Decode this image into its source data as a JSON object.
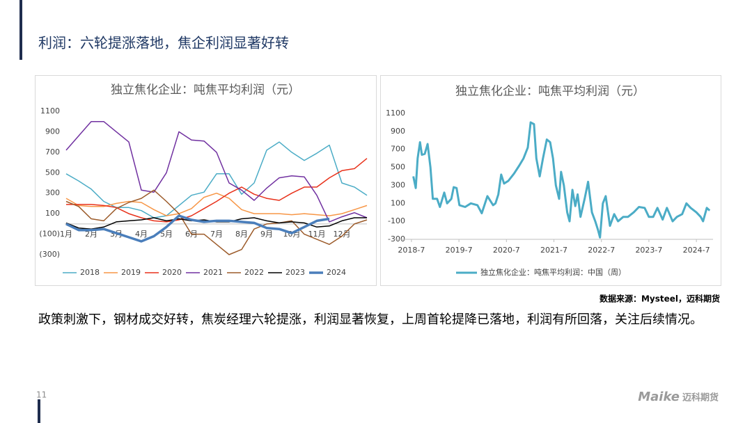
{
  "header": {
    "title": "利润：六轮提涨落地，焦企利润显著好转"
  },
  "chart_data": [
    {
      "type": "line",
      "title": "独立焦化企业：吨焦平均利润（元）",
      "categories": [
        "1月",
        null,
        "2月",
        null,
        "3月",
        null,
        "4月",
        null,
        "5月",
        null,
        "6月",
        null,
        "7月",
        null,
        "8月",
        null,
        "9月",
        null,
        "10月",
        null,
        "11月",
        null,
        "12月",
        null,
        null
      ],
      "ylim": [
        -300,
        1100
      ],
      "yticks": [
        1100,
        900,
        700,
        500,
        300,
        100,
        {
          "value": -100,
          "label": "(100)"
        },
        {
          "value": -300,
          "label": "(300)"
        }
      ],
      "negative_tick_label_color": "#c00000",
      "legend": "bottom",
      "series": [
        {
          "name": "2018",
          "color": "#4bacc6",
          "width": 1.5,
          "values": [
            490,
            420,
            340,
            220,
            160,
            160,
            130,
            60,
            80,
            180,
            280,
            310,
            490,
            490,
            290,
            400,
            720,
            800,
            700,
            620,
            690,
            770,
            400,
            360,
            280
          ]
        },
        {
          "name": "2019",
          "color": "#f79646",
          "width": 1.5,
          "values": [
            250,
            180,
            170,
            170,
            200,
            220,
            210,
            140,
            80,
            100,
            150,
            260,
            300,
            250,
            140,
            100,
            100,
            100,
            90,
            100,
            90,
            80,
            100,
            140,
            180
          ]
        },
        {
          "name": "2020",
          "color": "#e8311a",
          "width": 1.5,
          "values": [
            190,
            190,
            190,
            180,
            160,
            100,
            60,
            30,
            20,
            40,
            80,
            150,
            220,
            300,
            360,
            290,
            250,
            230,
            300,
            360,
            360,
            450,
            520,
            540,
            640
          ]
        },
        {
          "name": "2021",
          "color": "#7030a0",
          "width": 1.5,
          "values": [
            720,
            860,
            1000,
            1000,
            900,
            800,
            330,
            310,
            500,
            900,
            820,
            810,
            700,
            400,
            330,
            230,
            350,
            450,
            470,
            460,
            280,
            20,
            70,
            110,
            60
          ]
        },
        {
          "name": "2022",
          "color": "#9c5b2a",
          "width": 1.5,
          "values": [
            220,
            170,
            50,
            30,
            150,
            210,
            250,
            330,
            220,
            100,
            -100,
            -100,
            -200,
            -300,
            -250,
            -50,
            0,
            10,
            30,
            -100,
            -150,
            -200,
            -120,
            0,
            40
          ]
        },
        {
          "name": "2023",
          "color": "#000000",
          "width": 1.5,
          "values": [
            10,
            -40,
            -50,
            -30,
            20,
            30,
            40,
            60,
            30,
            50,
            30,
            40,
            20,
            20,
            50,
            60,
            30,
            10,
            20,
            10,
            -30,
            -20,
            30,
            60,
            60
          ]
        },
        {
          "name": "2024",
          "color": "#4a7ebb",
          "width": 3.5,
          "values": [
            0,
            -60,
            -60,
            -50,
            -90,
            -130,
            -170,
            -120,
            -30,
            80,
            40,
            20,
            30,
            30,
            20,
            10,
            -40,
            -50,
            -90,
            -30,
            30,
            50,
            null,
            null,
            null
          ]
        }
      ]
    },
    {
      "type": "line",
      "title": "独立焦化企业：吨焦平均利润（元）",
      "xlim": [
        2018.12,
        2024.85
      ],
      "xticks": [
        {
          "value": 2018.5,
          "label": "2018-7"
        },
        {
          "value": 2019.5,
          "label": "2019-7"
        },
        {
          "value": 2020.5,
          "label": "2020-7"
        },
        {
          "value": 2021.5,
          "label": "2021-7"
        },
        {
          "value": 2022.5,
          "label": "2022-7"
        },
        {
          "value": 2023.5,
          "label": "2023-7"
        },
        {
          "value": 2024.5,
          "label": "2024-7"
        }
      ],
      "ylim": [
        -300,
        1100
      ],
      "yticks": [
        1100,
        900,
        700,
        500,
        300,
        100,
        -100,
        -300
      ],
      "legend": "bottom",
      "x": [
        2018.54,
        2018.59,
        2018.63,
        2018.68,
        2018.72,
        2018.78,
        2018.84,
        2018.9,
        2018.95,
        2019.04,
        2019.1,
        2019.19,
        2019.25,
        2019.34,
        2019.39,
        2019.45,
        2019.51,
        2019.63,
        2019.75,
        2019.89,
        2019.98,
        2020.1,
        2020.22,
        2020.27,
        2020.33,
        2020.39,
        2020.45,
        2020.54,
        2020.66,
        2020.77,
        2020.86,
        2020.95,
        2021.01,
        2021.08,
        2021.13,
        2021.2,
        2021.27,
        2021.35,
        2021.42,
        2021.48,
        2021.54,
        2021.61,
        2021.65,
        2021.71,
        2021.78,
        2021.83,
        2021.89,
        2021.95,
        2022.0,
        2022.06,
        2022.15,
        2022.22,
        2022.3,
        2022.37,
        2022.43,
        2022.47,
        2022.53,
        2022.59,
        2022.68,
        2022.77,
        2022.85,
        2022.96,
        2023.06,
        2023.18,
        2023.29,
        2023.41,
        2023.5,
        2023.59,
        2023.68,
        2023.79,
        2023.88,
        2024.0,
        2024.09,
        2024.2,
        2024.29,
        2024.38,
        2024.5,
        2024.59,
        2024.64,
        2024.72,
        2024.78
      ],
      "series": [
        {
          "name": "独立焦化企业：吨焦平均利润：中国（周）",
          "color": "#4bacc6",
          "width": 3,
          "values": [
            400,
            270,
            600,
            780,
            640,
            650,
            760,
            500,
            150,
            150,
            60,
            220,
            100,
            150,
            280,
            270,
            80,
            60,
            100,
            80,
            -10,
            180,
            80,
            100,
            200,
            420,
            320,
            350,
            430,
            520,
            600,
            720,
            1000,
            980,
            600,
            400,
            600,
            810,
            780,
            600,
            300,
            150,
            450,
            300,
            0,
            -100,
            250,
            70,
            200,
            -50,
            160,
            340,
            0,
            -100,
            -200,
            -280,
            100,
            180,
            -150,
            -20,
            -100,
            -50,
            -50,
            0,
            60,
            50,
            -50,
            -50,
            50,
            -80,
            50,
            -100,
            -50,
            -20,
            100,
            50,
            0,
            -50,
            -100,
            50,
            20
          ]
        }
      ]
    }
  ],
  "source": "数据来源：Mysteel，迈科期货",
  "body": "政策刺激下，钢材成交好转，焦炭经理六轮提涨，利润显著恢复，上周首轮提降已落地，利润有所回落，关注后续情况。",
  "page_number": "11",
  "logo": {
    "brand": "Maike",
    "name": "迈科期货"
  }
}
